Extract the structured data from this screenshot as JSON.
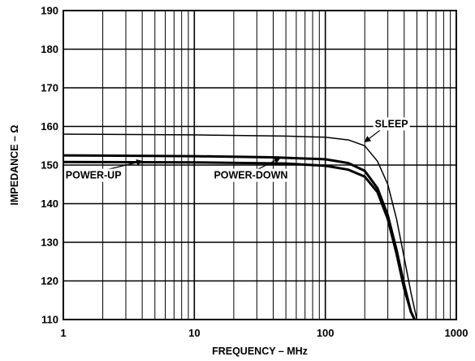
{
  "chart_data": {
    "type": "line",
    "xlabel": "FREQUENCY – MHz",
    "ylabel": "IMPEDANCE – Ω",
    "xscale": "log",
    "xlim": [
      1,
      1000
    ],
    "ylim": [
      110,
      190
    ],
    "grid": true,
    "x_tick_labels": [
      "1",
      "10",
      "100",
      "1000"
    ],
    "y_tick_labels": [
      "110",
      "120",
      "130",
      "140",
      "150",
      "160",
      "170",
      "180",
      "190"
    ],
    "series": [
      {
        "name": "SLEEP",
        "x": [
          1,
          10,
          50,
          100,
          150,
          200,
          250,
          300,
          350,
          400,
          450,
          500
        ],
        "y": [
          158,
          157.8,
          157.5,
          157.2,
          156.5,
          155,
          151,
          145,
          136,
          126,
          117,
          110
        ]
      },
      {
        "name": "POWER-DOWN",
        "x": [
          1,
          10,
          40,
          100,
          150,
          200,
          250,
          300,
          350,
          400,
          450,
          480
        ],
        "y": [
          152.5,
          152.3,
          152,
          151.5,
          150.5,
          148.5,
          144,
          137,
          128,
          119,
          112,
          110
        ]
      },
      {
        "name": "POWER-UP",
        "x": [
          1,
          10,
          50,
          100,
          150,
          200,
          250,
          300,
          350,
          400,
          450,
          480
        ],
        "y": [
          150.8,
          150.7,
          150.4,
          149.8,
          148.8,
          147,
          143,
          136,
          127,
          118,
          112,
          110
        ]
      }
    ],
    "annotations": [
      {
        "text": "SLEEP",
        "series": "SLEEP",
        "at_x": 200,
        "at_y": 156,
        "label_x": 320,
        "label_y": 159.8
      },
      {
        "text": "POWER-UP",
        "series": "POWER-UP",
        "at_x": 4,
        "at_y": 151,
        "label_x": 1.7,
        "label_y": 146.5
      },
      {
        "text": "POWER-DOWN",
        "series": "POWER-DOWN",
        "at_x": 45,
        "at_y": 151.8,
        "label_x": 27,
        "label_y": 146.5
      }
    ]
  }
}
